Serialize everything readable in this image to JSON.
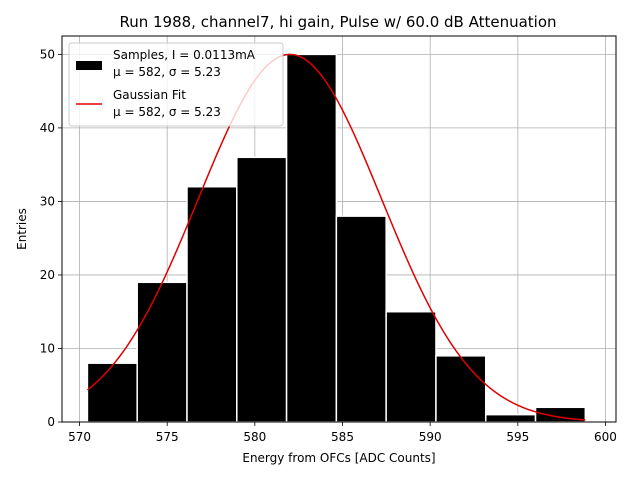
{
  "chart_data": {
    "type": "bar",
    "title": "Run 1988, channel7, hi gain, Pulse w/ 60.0 dB Attenuation",
    "xlabel": "Energy from OFCs [ADC Counts]",
    "ylabel": "Entries",
    "xlim": [
      569.0,
      600.6
    ],
    "ylim": [
      0,
      52.5
    ],
    "xticks": [
      570,
      575,
      580,
      585,
      590,
      595,
      600
    ],
    "yticks": [
      0,
      10,
      20,
      30,
      40,
      50
    ],
    "grid": true,
    "legend_position": "top-left",
    "bins": {
      "edges": [
        570.45,
        573.29,
        576.13,
        578.97,
        581.81,
        584.65,
        587.49,
        590.33,
        593.17,
        596.01,
        598.85
      ],
      "values": [
        8,
        19,
        32,
        36,
        50,
        28,
        15,
        9,
        1,
        2
      ],
      "color": "#000000",
      "edgecolor": "#ffffff"
    },
    "fit": {
      "type": "gaussian",
      "mu": 582,
      "sigma": 5.23,
      "peak": 50,
      "x_range": [
        570.45,
        598.85
      ],
      "color": "#e00000"
    },
    "legend": [
      {
        "kind": "patch",
        "color": "#000000",
        "line1": "Samples, I = 0.0113mA",
        "line2": "μ = 582, σ = 5.23"
      },
      {
        "kind": "line",
        "color": "#e00000",
        "line1": "Gaussian Fit",
        "line2": "μ = 582, σ = 5.23"
      }
    ]
  }
}
